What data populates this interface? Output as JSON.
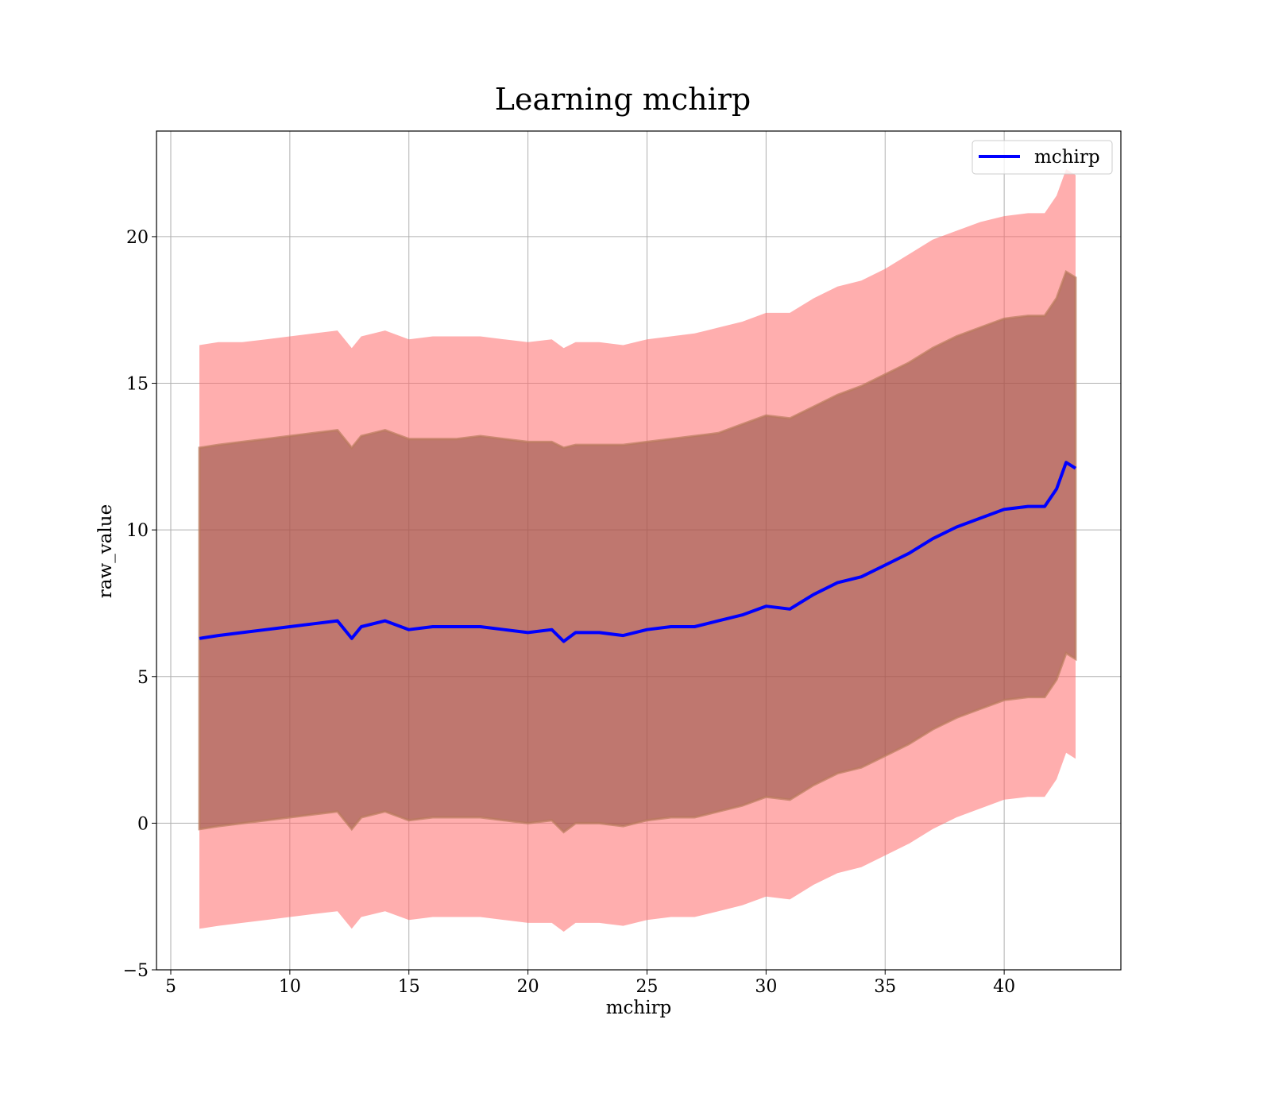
{
  "chart_data": {
    "type": "line",
    "title": "Learning mchirp",
    "xlabel": "mchirp",
    "ylabel": "raw_value",
    "xlim": [
      4.4,
      44.9
    ],
    "ylim": [
      -5,
      23.6
    ],
    "xticks": [
      5,
      10,
      15,
      20,
      25,
      30,
      35,
      40
    ],
    "yticks": [
      -5,
      0,
      5,
      10,
      15,
      20
    ],
    "xtick_labels": [
      "5",
      "10",
      "15",
      "20",
      "25",
      "30",
      "35",
      "40"
    ],
    "ytick_labels": [
      "−5",
      "0",
      "5",
      "10",
      "15",
      "20"
    ],
    "grid": true,
    "legend": {
      "position": "top-right",
      "entries": [
        {
          "label": "mchirp",
          "color": "#0000ff"
        }
      ]
    },
    "colors": {
      "line": "#0000ff",
      "outer_band": "#ff6b6b",
      "outer_band_opacity": 0.55,
      "inner_band": "#8b4a3c",
      "inner_band_opacity": 0.55,
      "band_edge": "#b97a5c"
    },
    "x": [
      6.2,
      7.0,
      8.0,
      9.0,
      10.0,
      11.0,
      12.0,
      12.6,
      13.0,
      14.0,
      15.0,
      16.0,
      17.0,
      18.0,
      19.0,
      20.0,
      21.0,
      21.5,
      22.0,
      23.0,
      24.0,
      25.0,
      26.0,
      27.0,
      28.0,
      29.0,
      30.0,
      31.0,
      32.0,
      33.0,
      34.0,
      35.0,
      36.0,
      37.0,
      38.0,
      39.0,
      40.0,
      41.0,
      41.7,
      42.2,
      42.6,
      43.0
    ],
    "series": [
      {
        "name": "mchirp",
        "role": "mean",
        "values": [
          6.3,
          6.4,
          6.5,
          6.6,
          6.7,
          6.8,
          6.9,
          6.3,
          6.7,
          6.9,
          6.6,
          6.7,
          6.7,
          6.7,
          6.6,
          6.5,
          6.6,
          6.2,
          6.5,
          6.5,
          6.4,
          6.6,
          6.7,
          6.7,
          6.9,
          7.1,
          7.4,
          7.3,
          7.8,
          8.2,
          8.4,
          8.8,
          9.2,
          9.7,
          10.1,
          10.4,
          10.7,
          10.8,
          10.8,
          11.4,
          12.3,
          12.1
        ]
      },
      {
        "role": "inner_band_upper",
        "values": [
          12.8,
          12.9,
          13.0,
          13.1,
          13.2,
          13.3,
          13.4,
          12.8,
          13.2,
          13.4,
          13.1,
          13.1,
          13.1,
          13.2,
          13.1,
          13.0,
          13.0,
          12.8,
          12.9,
          12.9,
          12.9,
          13.0,
          13.1,
          13.2,
          13.3,
          13.6,
          13.9,
          13.8,
          14.2,
          14.6,
          14.9,
          15.3,
          15.7,
          16.2,
          16.6,
          16.9,
          17.2,
          17.3,
          17.3,
          17.9,
          18.8,
          18.6
        ]
      },
      {
        "role": "inner_band_lower",
        "values": [
          -0.2,
          -0.1,
          0.0,
          0.1,
          0.2,
          0.3,
          0.4,
          -0.2,
          0.2,
          0.4,
          0.1,
          0.2,
          0.2,
          0.2,
          0.1,
          0.0,
          0.1,
          -0.3,
          0.0,
          0.0,
          -0.1,
          0.1,
          0.2,
          0.2,
          0.4,
          0.6,
          0.9,
          0.8,
          1.3,
          1.7,
          1.9,
          2.3,
          2.7,
          3.2,
          3.6,
          3.9,
          4.2,
          4.3,
          4.3,
          4.9,
          5.8,
          5.6
        ]
      },
      {
        "role": "outer_band_upper",
        "values": [
          16.3,
          16.4,
          16.4,
          16.5,
          16.6,
          16.7,
          16.8,
          16.2,
          16.6,
          16.8,
          16.5,
          16.6,
          16.6,
          16.6,
          16.5,
          16.4,
          16.5,
          16.2,
          16.4,
          16.4,
          16.3,
          16.5,
          16.6,
          16.7,
          16.9,
          17.1,
          17.4,
          17.4,
          17.9,
          18.3,
          18.5,
          18.9,
          19.4,
          19.9,
          20.2,
          20.5,
          20.7,
          20.8,
          20.8,
          21.4,
          22.3,
          22.1
        ]
      },
      {
        "role": "outer_band_lower",
        "values": [
          -3.6,
          -3.5,
          -3.4,
          -3.3,
          -3.2,
          -3.1,
          -3.0,
          -3.6,
          -3.2,
          -3.0,
          -3.3,
          -3.2,
          -3.2,
          -3.2,
          -3.3,
          -3.4,
          -3.4,
          -3.7,
          -3.4,
          -3.4,
          -3.5,
          -3.3,
          -3.2,
          -3.2,
          -3.0,
          -2.8,
          -2.5,
          -2.6,
          -2.1,
          -1.7,
          -1.5,
          -1.1,
          -0.7,
          -0.2,
          0.2,
          0.5,
          0.8,
          0.9,
          0.9,
          1.5,
          2.4,
          2.2
        ]
      }
    ]
  }
}
